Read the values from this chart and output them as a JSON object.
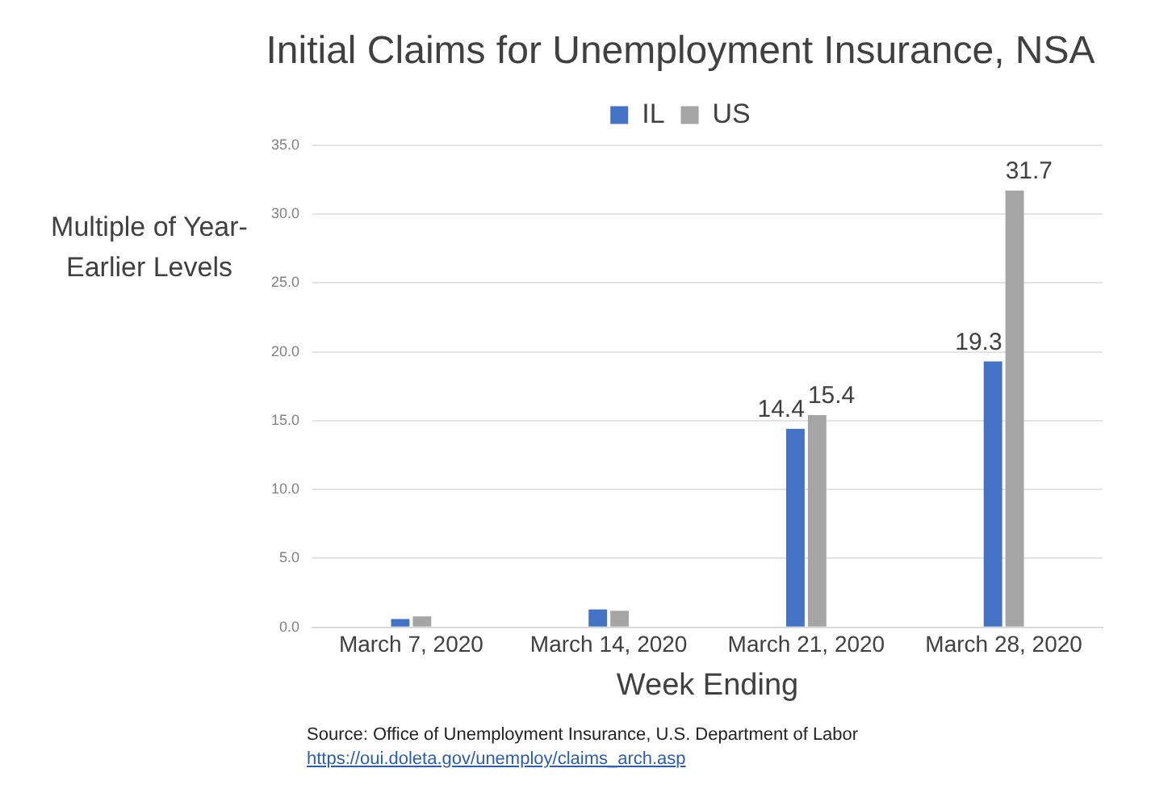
{
  "chart_data": {
    "type": "bar",
    "title": "Initial Claims for Unemployment Insurance, NSA",
    "xlabel": "Week Ending",
    "ylabel": "Multiple of Year-Earlier Levels",
    "categories": [
      "March 7, 2020",
      "March 14, 2020",
      "March 21, 2020",
      "March 28, 2020"
    ],
    "series": [
      {
        "name": "IL",
        "color": "#4472c4",
        "values": [
          0.6,
          1.3,
          14.4,
          19.3
        ],
        "value_labels": [
          null,
          null,
          "14.4",
          "19.3"
        ]
      },
      {
        "name": "US",
        "color": "#a5a5a5",
        "values": [
          0.8,
          1.2,
          15.4,
          31.7
        ],
        "value_labels": [
          null,
          null,
          "15.4",
          "31.7"
        ]
      }
    ],
    "ylim": [
      0,
      35
    ],
    "yticks": [
      {
        "value": 0,
        "label": "0.0"
      },
      {
        "value": 5,
        "label": "5.0"
      },
      {
        "value": 10,
        "label": "10.0"
      },
      {
        "value": 15,
        "label": "15.0"
      },
      {
        "value": 20,
        "label": "20.0"
      },
      {
        "value": 25,
        "label": "25.0"
      },
      {
        "value": 30,
        "label": "30.0"
      },
      {
        "value": 35,
        "label": "35.0"
      }
    ],
    "grid": "y",
    "legend": "top",
    "annotations": [
      "Source:  Office of Unemployment Insurance, U.S. Department of Labor",
      "https://oui.doleta.gov/unemploy/claims_arch.asp"
    ]
  }
}
